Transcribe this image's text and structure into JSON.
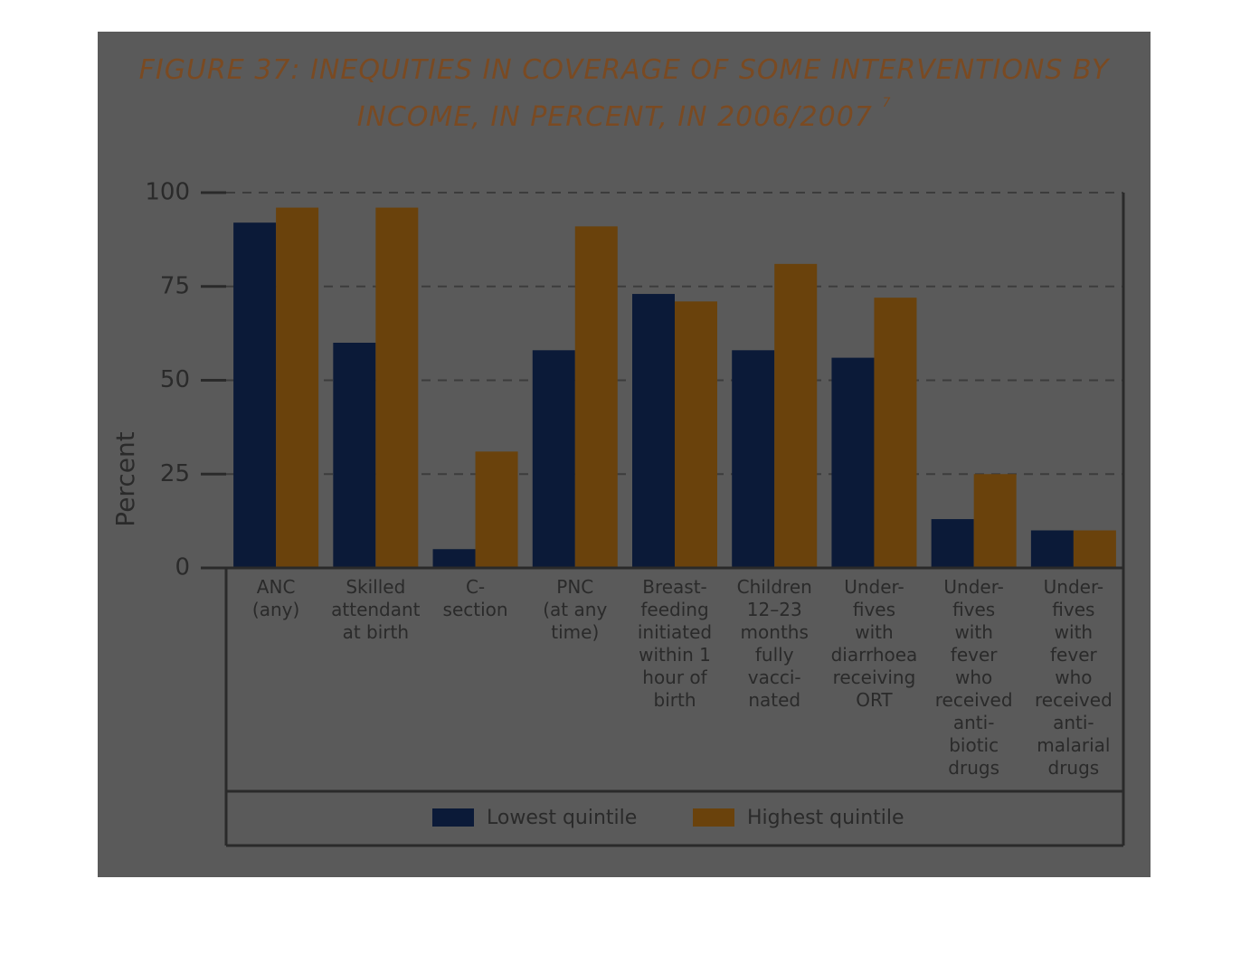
{
  "chart_data": {
    "type": "bar",
    "title": "FIGURE 37: INEQUITIES IN COVERAGE OF SOME INTERVENTIONS BY INCOME, IN PERCENT, IN 2006/2007",
    "title_footnote": "7",
    "y_label": "Percent",
    "categories": [
      "ANC\n(any)",
      "Skilled\nattendant\nat birth",
      "C-\nsection",
      "PNC\n(at any\ntime)",
      "Breast-\nfeeding\ninitiated\nwithin 1\nhour of\nbirth",
      "Children\n12–23\nmonths\nfully\nvacci-\nnated",
      "Under-\nfives\nwith\ndiarrhoea\nreceiving\nORT",
      "Under-\nfives\nwith\nfever\nwho\nreceived\nanti-\nbiotic\ndrugs",
      "Under-\nfives\nwith\nfever\nwho\nreceived\nanti-\nmalarial\ndrugs"
    ],
    "series": [
      {
        "name": "Lowest quintile",
        "color": "#0b1a38",
        "values": [
          92,
          60,
          5,
          58,
          73,
          58,
          56,
          13,
          10
        ]
      },
      {
        "name": "Highest quintile",
        "color": "#6a420c",
        "values": [
          96,
          96,
          31,
          91,
          71,
          81,
          72,
          25,
          10
        ]
      }
    ],
    "ylim": [
      0,
      100
    ],
    "yticks": [
      0,
      25,
      50,
      75,
      100
    ],
    "grid": true,
    "legend": "bottom"
  }
}
